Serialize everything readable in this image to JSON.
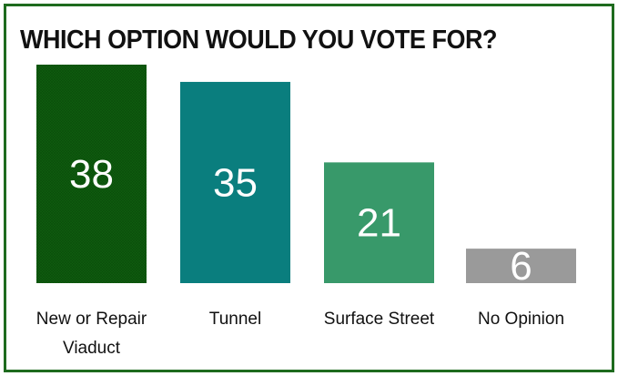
{
  "chart_data": {
    "type": "bar",
    "title": "WHICH OPTION WOULD YOU VOTE FOR?",
    "categories": [
      [
        "New or Repair",
        "Viaduct"
      ],
      [
        "Tunnel"
      ],
      [
        "Surface Street"
      ],
      [
        "No Opinion"
      ]
    ],
    "values": [
      38,
      35,
      21,
      6
    ],
    "colors": [
      "#0f5e0f",
      "#0a7e7e",
      "#38996a",
      "#9a9a9a"
    ],
    "ylim": [
      0,
      38
    ],
    "grid": false,
    "xlabel": "",
    "ylabel": ""
  },
  "colors": {
    "border": "#1e6b1e"
  }
}
